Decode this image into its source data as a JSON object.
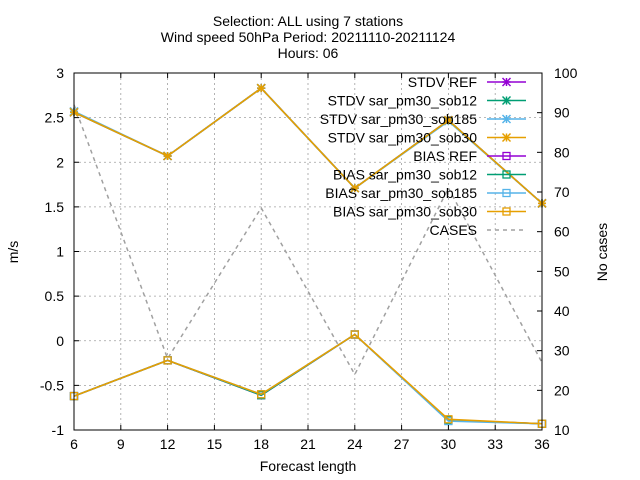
{
  "chart_data": {
    "type": "line",
    "title_lines": [
      "Selection: ALL using      7 stations",
      "Wind speed 50hPa   Period: 20211110-20211124",
      "Hours: 06"
    ],
    "xlabel": "Forecast length",
    "ylabel": "m/s",
    "y2label": "No cases",
    "x": [
      6,
      12,
      18,
      24,
      30,
      36
    ],
    "xlim": [
      6,
      36
    ],
    "xticks": [
      6,
      9,
      12,
      15,
      18,
      21,
      24,
      27,
      30,
      33,
      36
    ],
    "ylim": [
      -1,
      3
    ],
    "yticks": [
      -1,
      -0.5,
      0,
      0.5,
      1,
      1.5,
      2,
      2.5,
      3
    ],
    "y2lim": [
      10,
      100
    ],
    "y2ticks": [
      10,
      20,
      30,
      40,
      50,
      60,
      70,
      80,
      90,
      100
    ],
    "grid": true,
    "legend_position": "top-right",
    "series": [
      {
        "name": "STDV REF",
        "axis": "y1",
        "color": "#9400d3",
        "marker": "x",
        "values": [
          2.56,
          2.07,
          2.83,
          1.71,
          2.47,
          1.54
        ]
      },
      {
        "name": "STDV sar_pm30_sob12",
        "axis": "y1",
        "color": "#009e73",
        "marker": "x",
        "values": [
          2.56,
          2.07,
          2.83,
          1.71,
          2.47,
          1.54
        ]
      },
      {
        "name": "STDV sar_pm30_sob185",
        "axis": "y1",
        "color": "#56b4e9",
        "marker": "x",
        "values": [
          2.57,
          2.07,
          2.83,
          1.71,
          2.46,
          1.54
        ]
      },
      {
        "name": "STDV sar_pm30_sob30",
        "axis": "y1",
        "color": "#e69f00",
        "marker": "x",
        "values": [
          2.56,
          2.07,
          2.83,
          1.71,
          2.47,
          1.54
        ]
      },
      {
        "name": "BIAS REF",
        "axis": "y1",
        "color": "#9400d3",
        "marker": "square",
        "values": [
          -0.62,
          -0.22,
          -0.61,
          0.07,
          -0.89,
          -0.93
        ]
      },
      {
        "name": "BIAS sar_pm30_sob12",
        "axis": "y1",
        "color": "#009e73",
        "marker": "square",
        "values": [
          -0.62,
          -0.22,
          -0.61,
          0.07,
          -0.89,
          -0.93
        ]
      },
      {
        "name": "BIAS sar_pm30_sob185",
        "axis": "y1",
        "color": "#56b4e9",
        "marker": "square",
        "values": [
          -0.62,
          -0.22,
          -0.6,
          0.07,
          -0.9,
          -0.93
        ]
      },
      {
        "name": "BIAS sar_pm30_sob30",
        "axis": "y1",
        "color": "#e69f00",
        "marker": "square",
        "values": [
          -0.62,
          -0.22,
          -0.6,
          0.07,
          -0.88,
          -0.93
        ]
      },
      {
        "name": "CASES",
        "axis": "y2",
        "color": "#a0a0a0",
        "marker": "none",
        "dashed": true,
        "values": [
          92,
          28,
          66,
          24,
          71,
          27
        ]
      }
    ]
  }
}
